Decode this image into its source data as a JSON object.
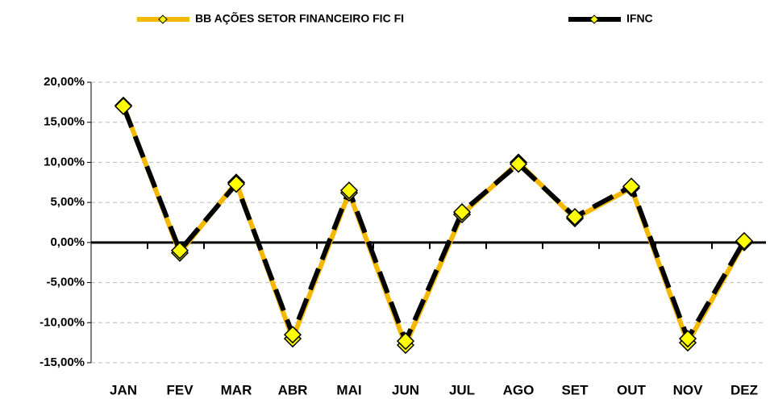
{
  "chart_data": {
    "type": "line",
    "categories": [
      "JAN",
      "FEV",
      "MAR",
      "ABR",
      "MAI",
      "JUN",
      "JUL",
      "AGO",
      "SET",
      "OUT",
      "NOV",
      "DEZ"
    ],
    "series": [
      {
        "name": "BB AÇÕES SETOR FINANCEIRO FIC FI",
        "color": "#f5b800",
        "values": [
          17.1,
          -1.3,
          7.5,
          -12.0,
          6.2,
          -12.8,
          3.5,
          10.0,
          3.0,
          6.8,
          -12.5,
          0.0
        ]
      },
      {
        "name": "IFNC",
        "color": "#000000",
        "values": [
          17.0,
          -1.0,
          7.3,
          -11.5,
          6.5,
          -12.3,
          3.8,
          9.8,
          3.2,
          7.0,
          -12.0,
          0.2
        ]
      }
    ],
    "ylim": [
      -15,
      20
    ],
    "yticks": [
      {
        "value": -15,
        "label": "-15,00%"
      },
      {
        "value": -10,
        "label": "-10,00%"
      },
      {
        "value": -5,
        "label": "-5,00%"
      },
      {
        "value": 0,
        "label": "0,00%"
      },
      {
        "value": 5,
        "label": "5,00%"
      },
      {
        "value": 10,
        "label": "10,00%"
      },
      {
        "value": 15,
        "label": "15,00%"
      },
      {
        "value": 20,
        "label": "20,00%"
      }
    ],
    "grid": true
  }
}
